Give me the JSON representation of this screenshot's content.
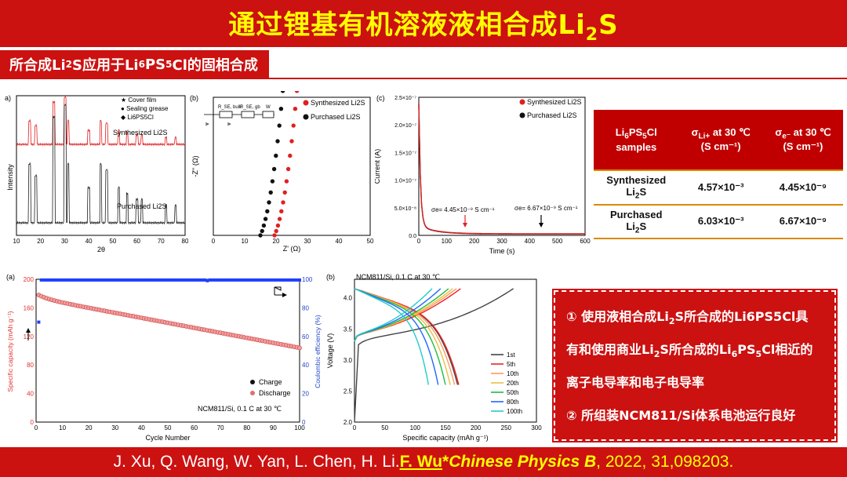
{
  "header": {
    "title_main": "通过锂基有机溶液液相合成Li",
    "title_sub": "2",
    "title_tail": "S"
  },
  "section": {
    "label_a": "所合成Li",
    "label_b": "2",
    "label_c": "S应用于Li",
    "label_d": "6",
    "label_e": "PS",
    "label_f": "5",
    "label_g": "Cl的固相合成"
  },
  "xrd": {
    "panel": "a)",
    "legend": [
      "Cover film",
      "Sealing grease",
      "Li6PS5Cl"
    ],
    "series": [
      "Synthesized Li2S",
      "Purchased Li2S"
    ],
    "ylabel": "Intensity",
    "xlabel": "2θ",
    "xticks": [
      "10",
      "20",
      "30",
      "40",
      "50",
      "60",
      "70",
      "80"
    ]
  },
  "eis": {
    "panel": "(b)",
    "series": [
      "Synthesized Li2S",
      "Purchased Li2S"
    ],
    "xlabel": "Z' (Ω)",
    "ylabel": "-Z'' (Ω)",
    "xticks": [
      "0",
      "10",
      "20",
      "30",
      "40",
      "50"
    ],
    "circuit": [
      "R_SE, bulk",
      "R_SE, gb",
      "W"
    ]
  },
  "dc": {
    "panel": "(c)",
    "series": [
      "Synthesized Li2S",
      "Purchased Li2S"
    ],
    "ylabel": "Current (A)",
    "xlabel": "Time (s)",
    "yticks": [
      "0.0",
      "5.0×10⁻⁸",
      "1.0×10⁻⁷",
      "1.5×10⁻⁷",
      "2.0×10⁻⁷",
      "2.5×10⁻⁷"
    ],
    "xticks": [
      "0",
      "100",
      "200",
      "300",
      "400",
      "500",
      "600"
    ],
    "annot1": "σe= 4.45×10⁻⁹ S cm⁻¹",
    "annot2": "σe= 6.67×10⁻⁹ S cm⁻¹"
  },
  "table": {
    "headers": [
      "Li6PS5Cl samples",
      "σLi+ at 30 ℃ (S cm⁻¹)",
      "σe⁻ at 30 ℃ (S cm⁻¹)"
    ],
    "h1a": "Li",
    "h1b": "6",
    "h1c": "PS",
    "h1d": "5",
    "h1e": "Cl",
    "h1f": "samples",
    "h2": "σ",
    "h2s": "Li+",
    "h2t": " at 30 ℃",
    "h2u": "(S cm⁻¹)",
    "h3": "σ",
    "h3s": "e⁻",
    "h3t": " at 30 ℃",
    "h3u": "(S cm⁻¹)",
    "rows": [
      {
        "name_a": "Synthesized",
        "name_b": "Li",
        "name_c": "2",
        "name_d": "S",
        "ion": "4.57×10⁻³",
        "el": "4.45×10⁻⁹"
      },
      {
        "name_a": "Purchased",
        "name_b": "Li",
        "name_c": "2",
        "name_d": "S",
        "ion": "6.03×10⁻³",
        "el": "6.67×10⁻⁹"
      }
    ]
  },
  "cycle": {
    "panel": "(a)",
    "ylabel_left": "Specific capacity (mAh g⁻¹)",
    "ylabel_right": "Coulombic efficiency (%)",
    "xlabel": "Cycle Number",
    "xticks": [
      "0",
      "10",
      "20",
      "30",
      "40",
      "50",
      "60",
      "70",
      "80",
      "90",
      "100"
    ],
    "yticks_left": [
      "0",
      "40",
      "80",
      "120",
      "160",
      "200"
    ],
    "yticks_right": [
      "0",
      "20",
      "40",
      "60",
      "80",
      "100"
    ],
    "legend": [
      "Charge",
      "Discharge"
    ],
    "note": "NCM811/Si, 0.1 C at 30 ℃"
  },
  "volt": {
    "panel": "(b)",
    "note": "NCM811/Si, 0.1 C at 30 ℃",
    "ylabel": "Voltage (V)",
    "xlabel": "Specific capacity (mAh g⁻¹)",
    "xticks": [
      "0",
      "50",
      "100",
      "150",
      "200",
      "250",
      "300"
    ],
    "yticks": [
      "2.5",
      "3.0",
      "3.5",
      "4.0"
    ],
    "ytick_extra": [
      "2.0"
    ],
    "legend": [
      "1st",
      "5th",
      "10th",
      "20th",
      "50th",
      "80th",
      "100th"
    ],
    "colors": [
      "#444444",
      "#ee2222",
      "#ff9966",
      "#e8c040",
      "#22bb44",
      "#2266ff",
      "#22cccc"
    ]
  },
  "box": {
    "line1": "① 使用液相合成Li",
    "line1s": "2",
    "line1t": "S所合成的Li6PS5Cl具",
    "line2": "有和使用商业Li",
    "line2s": "2",
    "line2t": "S所合成的Li",
    "line2u": "6",
    "line2v": "PS",
    "line2w": "5",
    "line2x": "Cl相近的",
    "line3": "离子电导率和电子电导率",
    "line4": "② 所组装NCM811/Si体系电池运行良好"
  },
  "footer": {
    "authors": "J. Xu, Q. Wang, W. Yan, L. Chen, H. Li. ",
    "corr": "F. Wu",
    "star": "*",
    "journal": "Chinese Physics B",
    "ref": ", 2022, 31,098203."
  }
}
